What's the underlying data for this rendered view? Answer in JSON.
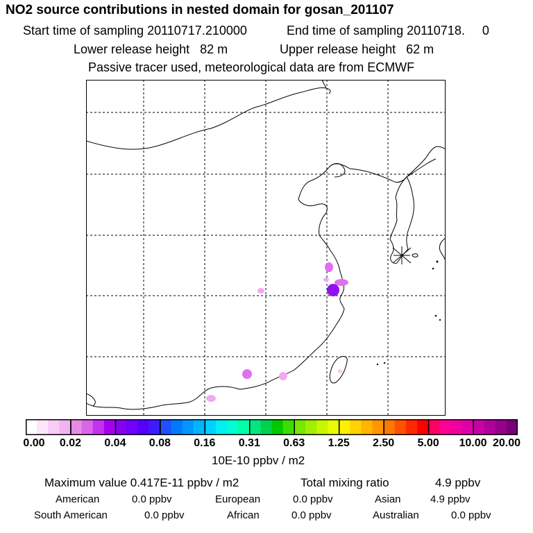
{
  "title": "NO2 source contributions in nested domain for gosan_201107",
  "sampling": {
    "start": "Start time of sampling 20110717.210000",
    "end": "End time of sampling 20110718.     0"
  },
  "release": {
    "lower": "Lower release height   82 m",
    "upper": "Upper release height   62 m"
  },
  "note": "Passive tracer used, meteorological data are from ECMWF",
  "map": {
    "receptor_marker": "gosan-receptor-star-icon",
    "plume_colors": [
      "#f2a8f2",
      "#e070f0",
      "#a020f0",
      "#8a1ae8"
    ]
  },
  "colorbar": {
    "tick_labels": [
      "0.00",
      "0.02",
      "0.04",
      "0.08",
      "0.16",
      "0.31",
      "0.63",
      "1.25",
      "2.50",
      "5.00",
      "10.00",
      "20.00"
    ],
    "units": "10E-10 ppbv / m2",
    "colors": [
      [
        "#ffffff",
        "#fce6fc",
        "#f7ccf7",
        "#f2b3f2"
      ],
      [
        "#e68ce6",
        "#d966e6",
        "#c233f0",
        "#a600f0"
      ],
      [
        "#8800f0",
        "#7000ff",
        "#5500ff",
        "#3c1cff"
      ],
      [
        "#1e50ff",
        "#0078ff",
        "#0096ff",
        "#00b4ff"
      ],
      [
        "#00d2ff",
        "#00f0f0",
        "#00ffd2",
        "#00ffaa"
      ],
      [
        "#00e680",
        "#00d250",
        "#00c800",
        "#3cdc00"
      ],
      [
        "#78e600",
        "#a0ee00",
        "#c8f500",
        "#e6fa00"
      ],
      [
        "#fff000",
        "#ffd200",
        "#ffb400",
        "#ff9600"
      ],
      [
        "#ff7800",
        "#ff5000",
        "#ff2800",
        "#ff0000"
      ],
      [
        "#ff0064",
        "#ff0096",
        "#f000a0",
        "#e100a8"
      ],
      [
        "#c800a8",
        "#b0009a",
        "#96008c",
        "#780078"
      ]
    ]
  },
  "stats": {
    "max_label": "Maximum value  0.417E-11 ppbv / m2",
    "total_label": "Total mixing ratio",
    "total_value": "4.9 ppbv",
    "american_label": "American",
    "american_value": "0.0 ppbv",
    "european_label": "European",
    "european_value": "0.0 ppbv",
    "asian_label": "Asian",
    "asian_value": "4.9 ppbv",
    "south_american_label": "South American",
    "south_american_value": "0.0 ppbv",
    "african_label": "African",
    "african_value": "0.0 ppbv",
    "australian_label": "Australian",
    "australian_value": "0.0 ppbv"
  }
}
